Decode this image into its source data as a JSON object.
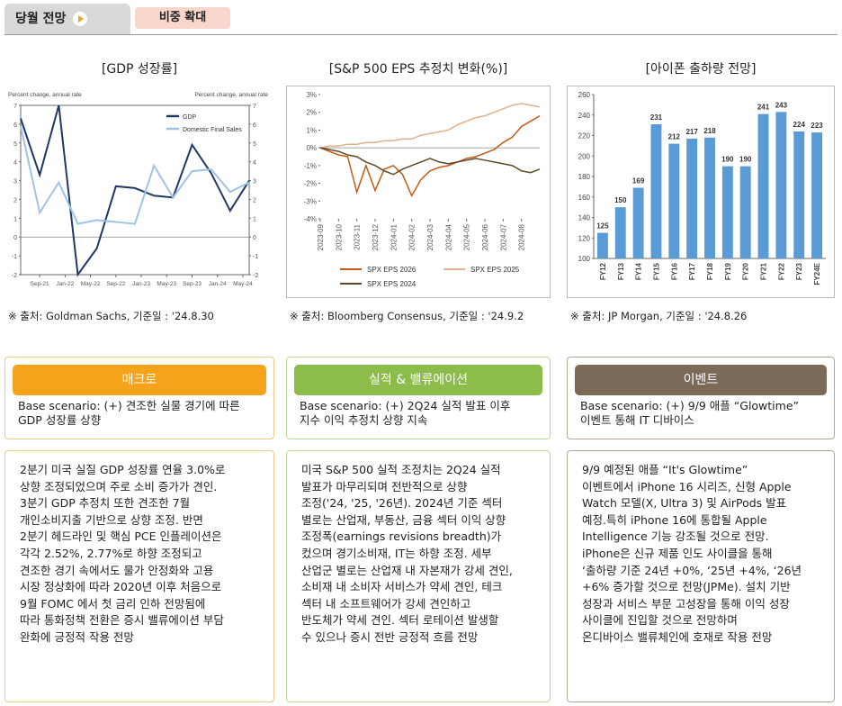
{
  "header": {
    "tab": "당월 전망",
    "stance": "비중 확대"
  },
  "chart_data": [
    {
      "type": "line",
      "title": "[GDP 성장률]",
      "y_label": "Percent change, annual rate",
      "y2_label": "Percent change, annual rate",
      "x": [
        0,
        3,
        6,
        9,
        12,
        15,
        18,
        21,
        24,
        27,
        30,
        33,
        36
      ],
      "xlim": [
        0,
        36
      ],
      "xticks": [
        {
          "value": 3,
          "label": "Sep-21"
        },
        {
          "value": 7,
          "label": "Jan-22"
        },
        {
          "value": 11,
          "label": "May-22"
        },
        {
          "value": 15,
          "label": "Sep-22"
        },
        {
          "value": 19,
          "label": "Jan-23"
        },
        {
          "value": 23,
          "label": "May-23"
        },
        {
          "value": 27,
          "label": "Sep-23"
        },
        {
          "value": 31,
          "label": "Jan-24"
        },
        {
          "value": 35,
          "label": "May-24"
        }
      ],
      "ylim": [
        -2,
        7
      ],
      "yticks": [
        -2,
        -1,
        0,
        1,
        2,
        3,
        4,
        5,
        6,
        7
      ],
      "y2lim": [
        -2,
        7
      ],
      "y2ticks": [
        -2,
        -1,
        0,
        1,
        2,
        3,
        4,
        5,
        6,
        7
      ],
      "legend": "upper right",
      "series": [
        {
          "name": "GDP",
          "color": "#1f3864",
          "values": [
            6.3,
            3.3,
            7.0,
            -2.0,
            -0.6,
            2.7,
            2.6,
            2.2,
            2.1,
            4.9,
            3.4,
            1.4,
            3.0
          ]
        },
        {
          "name": "Domestic Final Sales",
          "color": "#9dc3e6",
          "values": [
            5.9,
            1.3,
            2.9,
            0.7,
            0.9,
            0.8,
            0.7,
            3.8,
            2.1,
            3.5,
            3.6,
            2.4,
            2.9
          ]
        }
      ],
      "source": "※ 출처: Goldman Sachs, 기준일 : '24.8.30"
    },
    {
      "type": "line",
      "title": "[S&P 500 EPS 추정치 변화(%)]",
      "x": [
        0,
        0.5,
        1,
        1.5,
        2,
        2.5,
        3,
        3.5,
        4,
        4.5,
        5,
        5.5,
        6,
        6.5,
        7,
        7.5,
        8,
        8.5,
        9,
        9.5,
        10,
        10.5,
        11,
        11.5,
        12
      ],
      "xlim": [
        0,
        12
      ],
      "xticks": [
        {
          "value": 0,
          "label": "2023-09"
        },
        {
          "value": 1,
          "label": "2023-10"
        },
        {
          "value": 2,
          "label": "2023-11"
        },
        {
          "value": 3,
          "label": "2023-12"
        },
        {
          "value": 4,
          "label": "2024-01"
        },
        {
          "value": 5,
          "label": "2024-02"
        },
        {
          "value": 6,
          "label": "2024-03"
        },
        {
          "value": 7,
          "label": "2024-04"
        },
        {
          "value": 8,
          "label": "2024-05"
        },
        {
          "value": 9,
          "label": "2024-06"
        },
        {
          "value": 10,
          "label": "2024-07"
        },
        {
          "value": 11,
          "label": "2024-08"
        }
      ],
      "ylim": [
        -4,
        3
      ],
      "yticks": [
        {
          "value": -4,
          "label": "-4%"
        },
        {
          "value": -3,
          "label": "-3%"
        },
        {
          "value": -2,
          "label": "-2%"
        },
        {
          "value": -1,
          "label": "-1%"
        },
        {
          "value": 0,
          "label": "0%"
        },
        {
          "value": 1,
          "label": "1%"
        },
        {
          "value": 2,
          "label": "2%"
        },
        {
          "value": 3,
          "label": "3%"
        }
      ],
      "legend": "bottom",
      "series": [
        {
          "name": "SPX EPS 2026",
          "color": "#c55a11",
          "values": [
            0,
            -0.2,
            -0.4,
            -0.5,
            -2.5,
            -1.0,
            -2.4,
            -1.2,
            -1.0,
            -1.5,
            -2.7,
            -1.8,
            -1.3,
            -1.1,
            -1.0,
            -0.8,
            -0.6,
            -0.5,
            -0.3,
            -0.1,
            0.3,
            0.6,
            1.2,
            1.5,
            1.8
          ]
        },
        {
          "name": "SPX EPS 2025",
          "color": "#e0b08e",
          "values": [
            0,
            0.1,
            0.1,
            0.2,
            0.2,
            0.3,
            0.3,
            0.4,
            0.4,
            0.5,
            0.5,
            0.7,
            0.8,
            0.9,
            1.0,
            1.3,
            1.5,
            1.7,
            1.8,
            2.0,
            2.2,
            2.4,
            2.5,
            2.4,
            2.3
          ]
        },
        {
          "name": "SPX EPS 2024",
          "color": "#5a4a2a",
          "values": [
            0,
            -0.1,
            -0.2,
            -0.4,
            -0.5,
            -0.8,
            -1.0,
            -1.3,
            -1.5,
            -1.2,
            -1.0,
            -0.8,
            -0.6,
            -0.8,
            -0.9,
            -0.8,
            -0.7,
            -0.6,
            -0.7,
            -0.8,
            -0.9,
            -1.0,
            -1.3,
            -1.4,
            -1.2
          ]
        }
      ],
      "source": "※ 출처: Bloomberg Consensus, 기준일 : '24.9.2"
    },
    {
      "type": "bar",
      "title": "[아이폰 출하량 전망]",
      "categories": [
        "FY12",
        "FY13",
        "FY14",
        "FY15",
        "FY16",
        "FY17",
        "FY18",
        "FY19",
        "FY20",
        "FY21",
        "FY22",
        "FY23",
        "FY24E"
      ],
      "values": [
        125,
        150,
        169,
        231,
        212,
        217,
        218,
        190,
        190,
        241,
        243,
        224,
        223
      ],
      "color": "#5b9bd5",
      "ylim": [
        100,
        260
      ],
      "yticks": [
        100,
        120,
        140,
        160,
        180,
        200,
        220,
        240,
        260
      ],
      "source": "※ 출처: JP Morgan, 기준일 : '24.8.26"
    }
  ],
  "panels": [
    {
      "title": "매크로",
      "color": "#f5a31a",
      "border": "#f3c98a",
      "scenario": [
        "Base scenario: (+) 견조한 실물 경기에 따른",
        "GDP 성장률 상향"
      ],
      "body": [
        "2분기 미국 실질 GDP 성장률 연율 3.0%로",
        "상향 조정되었으며 주로 소비 증가가 견인.",
        "3분기 GDP 추정치 또한 견조한 7월",
        "개인소비지출 기반으로 상향 조정. 반면",
        "2분기 헤드라인 및 핵심 PCE 인플레이션은",
        "각각 2.52%, 2.77%로 하향 조정되고",
        "견조한 경기 속에서도 물가 안정화와 고용",
        "시장 정상화에 따라 2020년 이후 처음으로",
        "9월 FOMC 에서 첫 금리 인하 전망됨에",
        "따라 통화정책 전환은 증시 밸류에이션 부담",
        "완화에 긍정적 작용 전망"
      ]
    },
    {
      "title": "실적 & 밸류에이션",
      "color": "#8cbd4a",
      "border": "#bcd99a",
      "scenario": [
        "Base scenario: (+) 2Q24 실적 발표 이후",
        "지수 이익 추정치 상향 지속"
      ],
      "body": [
        "미국 S&P 500 실적 조정치는 2Q24 실적",
        "발표가 마무리되며 전반적으로 상향",
        "조정('24, '25, '26년). 2024년 기준 섹터",
        "별로는 산업재, 부동산, 금융 섹터 이익 상향",
        "조정폭(earnings revisions breadth)가",
        "컸으며 경기소비재, IT는 하향 조정. 세부",
        "산업군 별로는 산업재 내 자본재가 강세 견인,",
        "소비재 내 소비자 서비스가 약세 견인, 테크",
        "섹터 내 소프트웨어가 강세 견인하고",
        "반도체가 약세 견인. 섹터 로테이션 발생할",
        "수 있으나 증시 전반 긍정적 흐름 전망"
      ]
    },
    {
      "title": "이벤트",
      "color": "#7b6a58",
      "border": "#b3a697",
      "scenario": [
        "Base scenario: (+) 9/9 애플 “Glowtime”",
        "이벤트 통해 IT 디바이스"
      ],
      "body": [
        "9/9 예정된 애플 “It's Glowtime”",
        "이벤트에서 iPhone 16 시리즈, 신형 Apple",
        "Watch 모델(X, Ultra 3) 및 AirPods 발표",
        "예정.특히 iPhone 16에 통합될 Apple",
        "Intelligence 기능 강조될 것으로 전망.",
        "iPhone은 신규 제품 인도 사이클을 통해",
        "‘출하량 기준 24년 +0%, ‘25년 +4%, ‘26년",
        "+6% 증가할 것으로 전망(JPMe). 설치 기반",
        "성장과 서비스 부문 고성장을 통해 이익 성장",
        "사이클에 진입할 것으로 전망하며",
        "온디바이스 밸류체인에 호재로 작용 전망"
      ]
    }
  ]
}
